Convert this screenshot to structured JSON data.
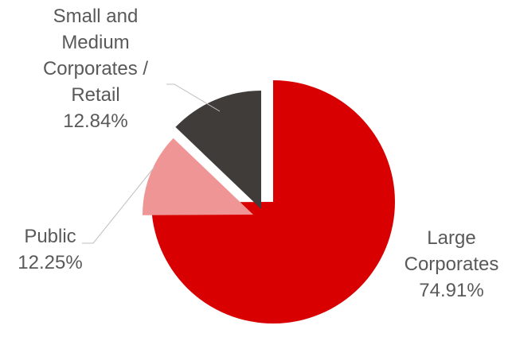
{
  "chart_data": {
    "type": "pie",
    "start_angle_deg": 0,
    "exploded": true,
    "slices": [
      {
        "name": "Large Corporates",
        "value": 74.91,
        "label_lines": [
          "Large",
          "Corporates",
          "74.91%"
        ],
        "color": "#d80000"
      },
      {
        "name": "Public",
        "value": 12.25,
        "label_lines": [
          "Public",
          "12.25%"
        ],
        "color": "#f09595"
      },
      {
        "name": "Small and Medium Corporates / Retail",
        "value": 12.84,
        "label_lines": [
          "Small and",
          "Medium",
          "Corporates /",
          "Retail",
          "12.84%"
        ],
        "color": "#403c3a"
      }
    ],
    "label_color": "#595959",
    "leader_line_color": "#bfbfbf"
  }
}
